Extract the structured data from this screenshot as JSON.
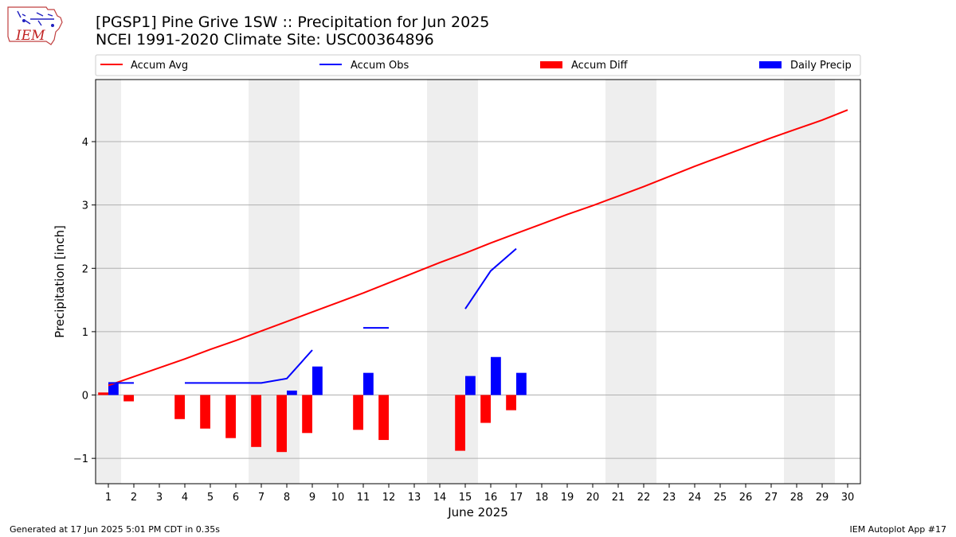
{
  "header": {
    "title": "[PGSP1] Pine Grive 1SW :: Precipitation for Jun 2025",
    "subtitle": "NCEI 1991-2020 Climate Site: USC00364896",
    "logo_text": "IEM"
  },
  "footer": {
    "generated": "Generated at 17 Jun 2025 5:01 PM CDT in 0.35s",
    "app": "IEM Autoplot App #17"
  },
  "chart_data": {
    "type": "bar",
    "title": "[PGSP1] Pine Grive 1SW :: Precipitation for Jun 2025",
    "subtitle": "NCEI 1991-2020 Climate Site: USC00364896",
    "xlabel": "June 2025",
    "ylabel": "Precipitation [inch]",
    "xlim": [
      0.5,
      30.5
    ],
    "ylim": [
      -1.4,
      4.98
    ],
    "x_ticks": [
      1,
      2,
      3,
      4,
      5,
      6,
      7,
      8,
      9,
      10,
      11,
      12,
      13,
      14,
      15,
      16,
      17,
      18,
      19,
      20,
      21,
      22,
      23,
      24,
      25,
      26,
      27,
      28,
      29,
      30
    ],
    "y_ticks": [
      -1,
      0,
      1,
      2,
      3,
      4
    ],
    "y_tick_labels": [
      "−1",
      "0",
      "1",
      "2",
      "3",
      "4"
    ],
    "grid": "horizontal",
    "legend_position": "top",
    "weekend_shading": [
      [
        0.5,
        1.5
      ],
      [
        6.5,
        8.5
      ],
      [
        13.5,
        15.5
      ],
      [
        20.5,
        22.5
      ],
      [
        27.5,
        29.5
      ]
    ],
    "series": [
      {
        "name": "Accum Avg",
        "kind": "line",
        "color": "#ff0000",
        "x": [
          1,
          2,
          3,
          4,
          5,
          6,
          7,
          8,
          9,
          10,
          11,
          12,
          13,
          14,
          15,
          16,
          17,
          18,
          19,
          20,
          21,
          22,
          23,
          24,
          25,
          26,
          27,
          28,
          29,
          30
        ],
        "values": [
          0.15,
          0.29,
          0.43,
          0.57,
          0.72,
          0.86,
          1.01,
          1.16,
          1.31,
          1.46,
          1.61,
          1.77,
          1.93,
          2.09,
          2.24,
          2.4,
          2.55,
          2.7,
          2.85,
          2.99,
          3.14,
          3.29,
          3.45,
          3.61,
          3.76,
          3.91,
          4.06,
          4.2,
          4.34,
          4.5
        ]
      },
      {
        "name": "Accum Obs",
        "kind": "line",
        "color": "#0000ff",
        "segments": [
          {
            "x": [
              1,
              2
            ],
            "values": [
              0.19,
              0.19
            ]
          },
          {
            "x": [
              4,
              5,
              6,
              7,
              8,
              9
            ],
            "values": [
              0.19,
              0.19,
              0.19,
              0.19,
              0.26,
              0.71
            ]
          },
          {
            "x": [
              11,
              12
            ],
            "values": [
              1.06,
              1.06
            ]
          },
          {
            "x": [
              15,
              16,
              17
            ],
            "values": [
              1.36,
              1.96,
              2.31
            ]
          }
        ]
      },
      {
        "name": "Accum Diff",
        "kind": "bar",
        "color": "#ff0000",
        "x": [
          1,
          2,
          4,
          5,
          6,
          7,
          8,
          9,
          11,
          12,
          15,
          16,
          17
        ],
        "values": [
          0.04,
          -0.1,
          -0.38,
          -0.53,
          -0.68,
          -0.82,
          -0.9,
          -0.6,
          -0.55,
          -0.71,
          -0.88,
          -0.44,
          -0.24
        ]
      },
      {
        "name": "Daily Precip",
        "kind": "bar",
        "color": "#0000ff",
        "x": [
          1,
          8,
          9,
          11,
          15,
          16,
          17
        ],
        "values": [
          0.19,
          0.07,
          0.45,
          0.35,
          0.3,
          0.6,
          0.35
        ]
      }
    ]
  }
}
